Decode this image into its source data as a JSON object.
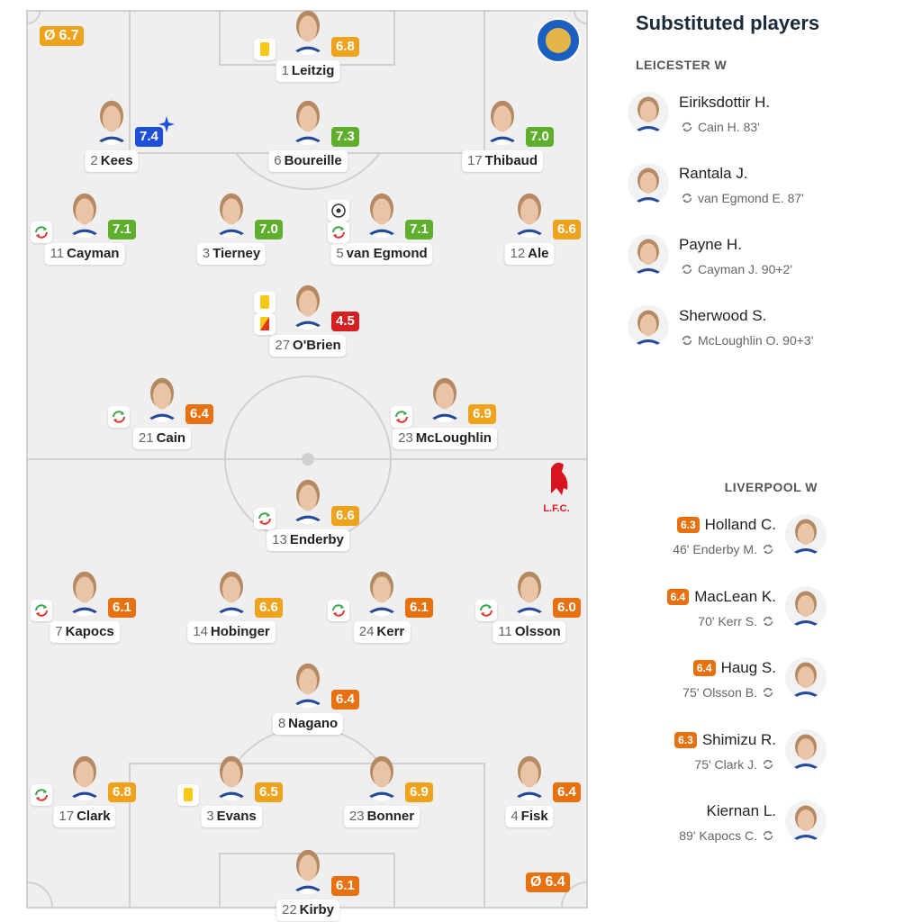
{
  "pitch": {
    "average_symbol": "Ø",
    "home_average": "6.7",
    "away_average": "6.4",
    "away_crest": "L.F.C.",
    "players": [
      {
        "number": 1,
        "name": "Leitzig",
        "rating": "6.8",
        "icons": [
          "yellow"
        ]
      },
      {
        "number": 2,
        "name": "Kees",
        "rating": "7.4",
        "icons": []
      },
      {
        "number": 6,
        "name": "Boureille",
        "rating": "7.3",
        "icons": []
      },
      {
        "number": 17,
        "name": "Thibaud",
        "rating": "7.0",
        "icons": []
      },
      {
        "number": 11,
        "name": "Cayman",
        "rating": "7.1",
        "icons": [
          "sub"
        ]
      },
      {
        "number": 3,
        "name": "Tierney",
        "rating": "7.0",
        "icons": []
      },
      {
        "number": 5,
        "name": "van Egmond",
        "rating": "7.1",
        "icons": [
          "ball",
          "sub"
        ]
      },
      {
        "number": 12,
        "name": "Ale",
        "rating": "6.6",
        "icons": []
      },
      {
        "number": 27,
        "name": "O'Brien",
        "rating": "4.5",
        "icons": [
          "yellow",
          "red"
        ]
      },
      {
        "number": 21,
        "name": "Cain",
        "rating": "6.4",
        "icons": [
          "sub"
        ]
      },
      {
        "number": 23,
        "name": "McLoughlin",
        "rating": "6.9",
        "icons": [
          "sub"
        ]
      },
      {
        "number": 13,
        "name": "Enderby",
        "rating": "6.6",
        "icons": [
          "sub"
        ]
      },
      {
        "number": 7,
        "name": "Kapocs",
        "rating": "6.1",
        "icons": [
          "sub"
        ]
      },
      {
        "number": 14,
        "name": "Hobinger",
        "rating": "6.6",
        "icons": []
      },
      {
        "number": 24,
        "name": "Kerr",
        "rating": "6.1",
        "icons": [
          "sub"
        ]
      },
      {
        "number": 11,
        "name": "Olsson",
        "rating": "6.0",
        "icons": [
          "sub"
        ]
      },
      {
        "number": 8,
        "name": "Nagano",
        "rating": "6.4",
        "icons": []
      },
      {
        "number": 17,
        "name": "Clark",
        "rating": "6.8",
        "icons": [
          "sub"
        ]
      },
      {
        "number": 3,
        "name": "Evans",
        "rating": "6.5",
        "icons": [
          "yellow"
        ]
      },
      {
        "number": 23,
        "name": "Bonner",
        "rating": "6.9",
        "icons": []
      },
      {
        "number": 4,
        "name": "Fisk",
        "rating": "6.4",
        "icons": []
      },
      {
        "number": 22,
        "name": "Kirby",
        "rating": "6.1",
        "icons": []
      }
    ]
  },
  "substitutes": {
    "title": "Substituted players",
    "teams": [
      {
        "name": "LEICESTER W",
        "players": [
          {
            "name": "Eiriksdottir H.",
            "replaced": "Cain H. 83'"
          },
          {
            "name": "Rantala J.",
            "replaced": "van Egmond E. 87'"
          },
          {
            "name": "Payne H.",
            "replaced": "Cayman J. 90+2'"
          },
          {
            "name": "Sherwood S.",
            "replaced": "McLoughlin O. 90+3'"
          }
        ]
      },
      {
        "name": "LIVERPOOL W",
        "players": [
          {
            "rating": "6.3",
            "name": "Holland C.",
            "replaced": "46' Enderby M."
          },
          {
            "rating": "6.4",
            "name": "MacLean K.",
            "replaced": "70' Kerr S."
          },
          {
            "rating": "6.4",
            "name": "Haug S.",
            "replaced": "75' Olsson B."
          },
          {
            "rating": "6.3",
            "name": "Shimizu R.",
            "replaced": "75' Clark J."
          },
          {
            "name": "Kiernan L.",
            "replaced": "89' Kapocs C."
          }
        ]
      }
    ]
  }
}
